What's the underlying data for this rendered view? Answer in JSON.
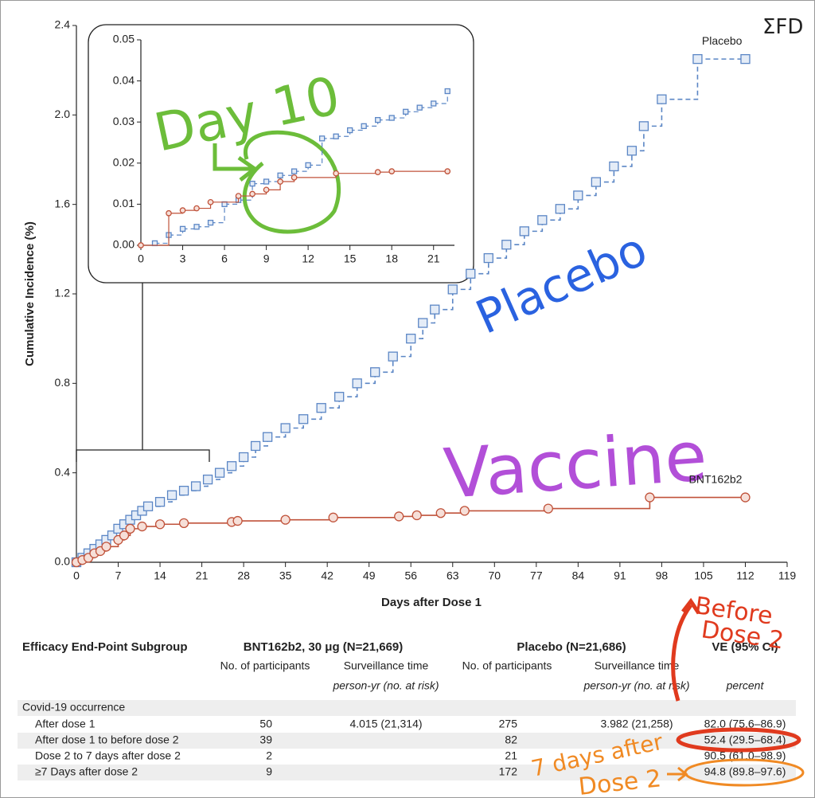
{
  "chart_data": [
    {
      "type": "step",
      "ylabel": "Cumulative Incidence (%)",
      "xlabel": "Days after Dose 1",
      "xlim": [
        0,
        119
      ],
      "xticks": [
        0,
        7,
        14,
        21,
        28,
        35,
        42,
        49,
        56,
        63,
        70,
        77,
        84,
        91,
        98,
        105,
        112,
        119
      ],
      "ylim": [
        0,
        2.4
      ],
      "yticks": [
        {
          "value": 0,
          "label": "0.0"
        },
        0.4,
        0.8,
        1.2,
        1.6,
        {
          "value": 2,
          "label": "2.0"
        },
        2.4
      ],
      "series": [
        {
          "name": "Placebo",
          "color": "#5b86c5",
          "marker": "square",
          "line_style": "dashed",
          "x": [
            0,
            1,
            2,
            3,
            4,
            5,
            6,
            7,
            8,
            9,
            10,
            11,
            12,
            14,
            16,
            18,
            20,
            22,
            24,
            26,
            28,
            30,
            32,
            35,
            38,
            41,
            44,
            47,
            50,
            53,
            56,
            58,
            60,
            63,
            66,
            69,
            72,
            75,
            78,
            81,
            84,
            87,
            90,
            93,
            95,
            98,
            104,
            112
          ],
          "values": [
            0,
            0.02,
            0.04,
            0.06,
            0.08,
            0.1,
            0.12,
            0.15,
            0.17,
            0.19,
            0.21,
            0.23,
            0.25,
            0.27,
            0.3,
            0.32,
            0.34,
            0.37,
            0.4,
            0.43,
            0.47,
            0.52,
            0.56,
            0.6,
            0.64,
            0.69,
            0.74,
            0.8,
            0.85,
            0.92,
            1.0,
            1.07,
            1.13,
            1.22,
            1.29,
            1.36,
            1.42,
            1.48,
            1.53,
            1.58,
            1.64,
            1.7,
            1.77,
            1.84,
            1.95,
            2.07,
            2.25,
            2.25
          ]
        },
        {
          "name": "BNT162b2",
          "color": "#c0523a",
          "marker": "circle",
          "line_style": "solid",
          "x": [
            0,
            1,
            2,
            3,
            4,
            5,
            7,
            8,
            9,
            11,
            14,
            18,
            26,
            27,
            35,
            43,
            54,
            57,
            61,
            65,
            79,
            96,
            112
          ],
          "values": [
            0,
            0.01,
            0.02,
            0.04,
            0.05,
            0.07,
            0.1,
            0.12,
            0.15,
            0.16,
            0.17,
            0.175,
            0.18,
            0.185,
            0.19,
            0.2,
            0.205,
            0.21,
            0.22,
            0.23,
            0.24,
            0.29,
            0.29
          ]
        }
      ]
    },
    {
      "type": "step",
      "xlim": [
        0,
        22.5
      ],
      "xticks": [
        0,
        3,
        6,
        9,
        12,
        15,
        18,
        21
      ],
      "ylim": [
        0,
        0.05
      ],
      "yticks": [
        {
          "value": 0,
          "label": "0.00"
        },
        {
          "value": 0.01,
          "label": "0.01"
        },
        {
          "value": 0.02,
          "label": "0.02"
        },
        {
          "value": 0.03,
          "label": "0.03"
        },
        {
          "value": 0.04,
          "label": "0.04"
        },
        {
          "value": 0.05,
          "label": "0.05"
        }
      ],
      "series": [
        {
          "color": "#5b86c5",
          "marker": "square",
          "line_style": "dashed",
          "x": [
            1,
            2,
            3,
            4,
            5,
            6,
            7,
            8,
            9,
            10,
            11,
            12,
            13,
            14,
            15,
            16,
            17,
            18,
            19,
            20,
            21,
            22
          ],
          "values": [
            0.0005,
            0.0025,
            0.004,
            0.0045,
            0.0055,
            0.01,
            0.011,
            0.015,
            0.0155,
            0.017,
            0.018,
            0.0195,
            0.026,
            0.0265,
            0.028,
            0.029,
            0.0305,
            0.031,
            0.0325,
            0.0335,
            0.0345,
            0.0375
          ]
        },
        {
          "color": "#c0523a",
          "marker": "circle",
          "line_style": "solid",
          "x": [
            0,
            2,
            3,
            4,
            5,
            7,
            8,
            9,
            10,
            11,
            14,
            17,
            18,
            22
          ],
          "values": [
            0,
            0.0078,
            0.0085,
            0.009,
            0.0105,
            0.012,
            0.0125,
            0.0135,
            0.0155,
            0.0165,
            0.0175,
            0.0178,
            0.018,
            0.018
          ]
        }
      ]
    }
  ],
  "table": {
    "header": [
      "Efficacy End-Point Subgroup",
      "BNT162b2, 30 μg (N=21,669)",
      "Placebo (N=21,686)",
      "VE (95% CI)"
    ],
    "subheader": [
      "No. of participants",
      "Surveillance time",
      "No. of participants",
      "Surveillance time"
    ],
    "units": [
      "person-yr (no. at risk)",
      "person-yr (no. at risk)",
      "percent"
    ],
    "section": "Covid-19 occurrence",
    "rows": [
      [
        "After dose 1",
        "50",
        "4.015 (21,314)",
        "275",
        "3.982 (21,258)",
        "82.0 (75.6–86.9)"
      ],
      [
        "After dose 1 to before dose 2",
        "39",
        "82",
        "52.4 (29.5–68.4)"
      ],
      [
        "Dose 2 to 7 days after dose 2",
        "2",
        "21",
        "90.5 (61.0–98.9)"
      ],
      [
        "≥7 Days after dose 2",
        "9",
        "172",
        "94.8 (89.8–97.6)"
      ]
    ]
  },
  "annotations": [
    "ΣFD",
    "Day 10",
    "Placebo",
    "Vaccine",
    "Before",
    "Dose 2",
    "7 days after",
    "Dose 2"
  ]
}
